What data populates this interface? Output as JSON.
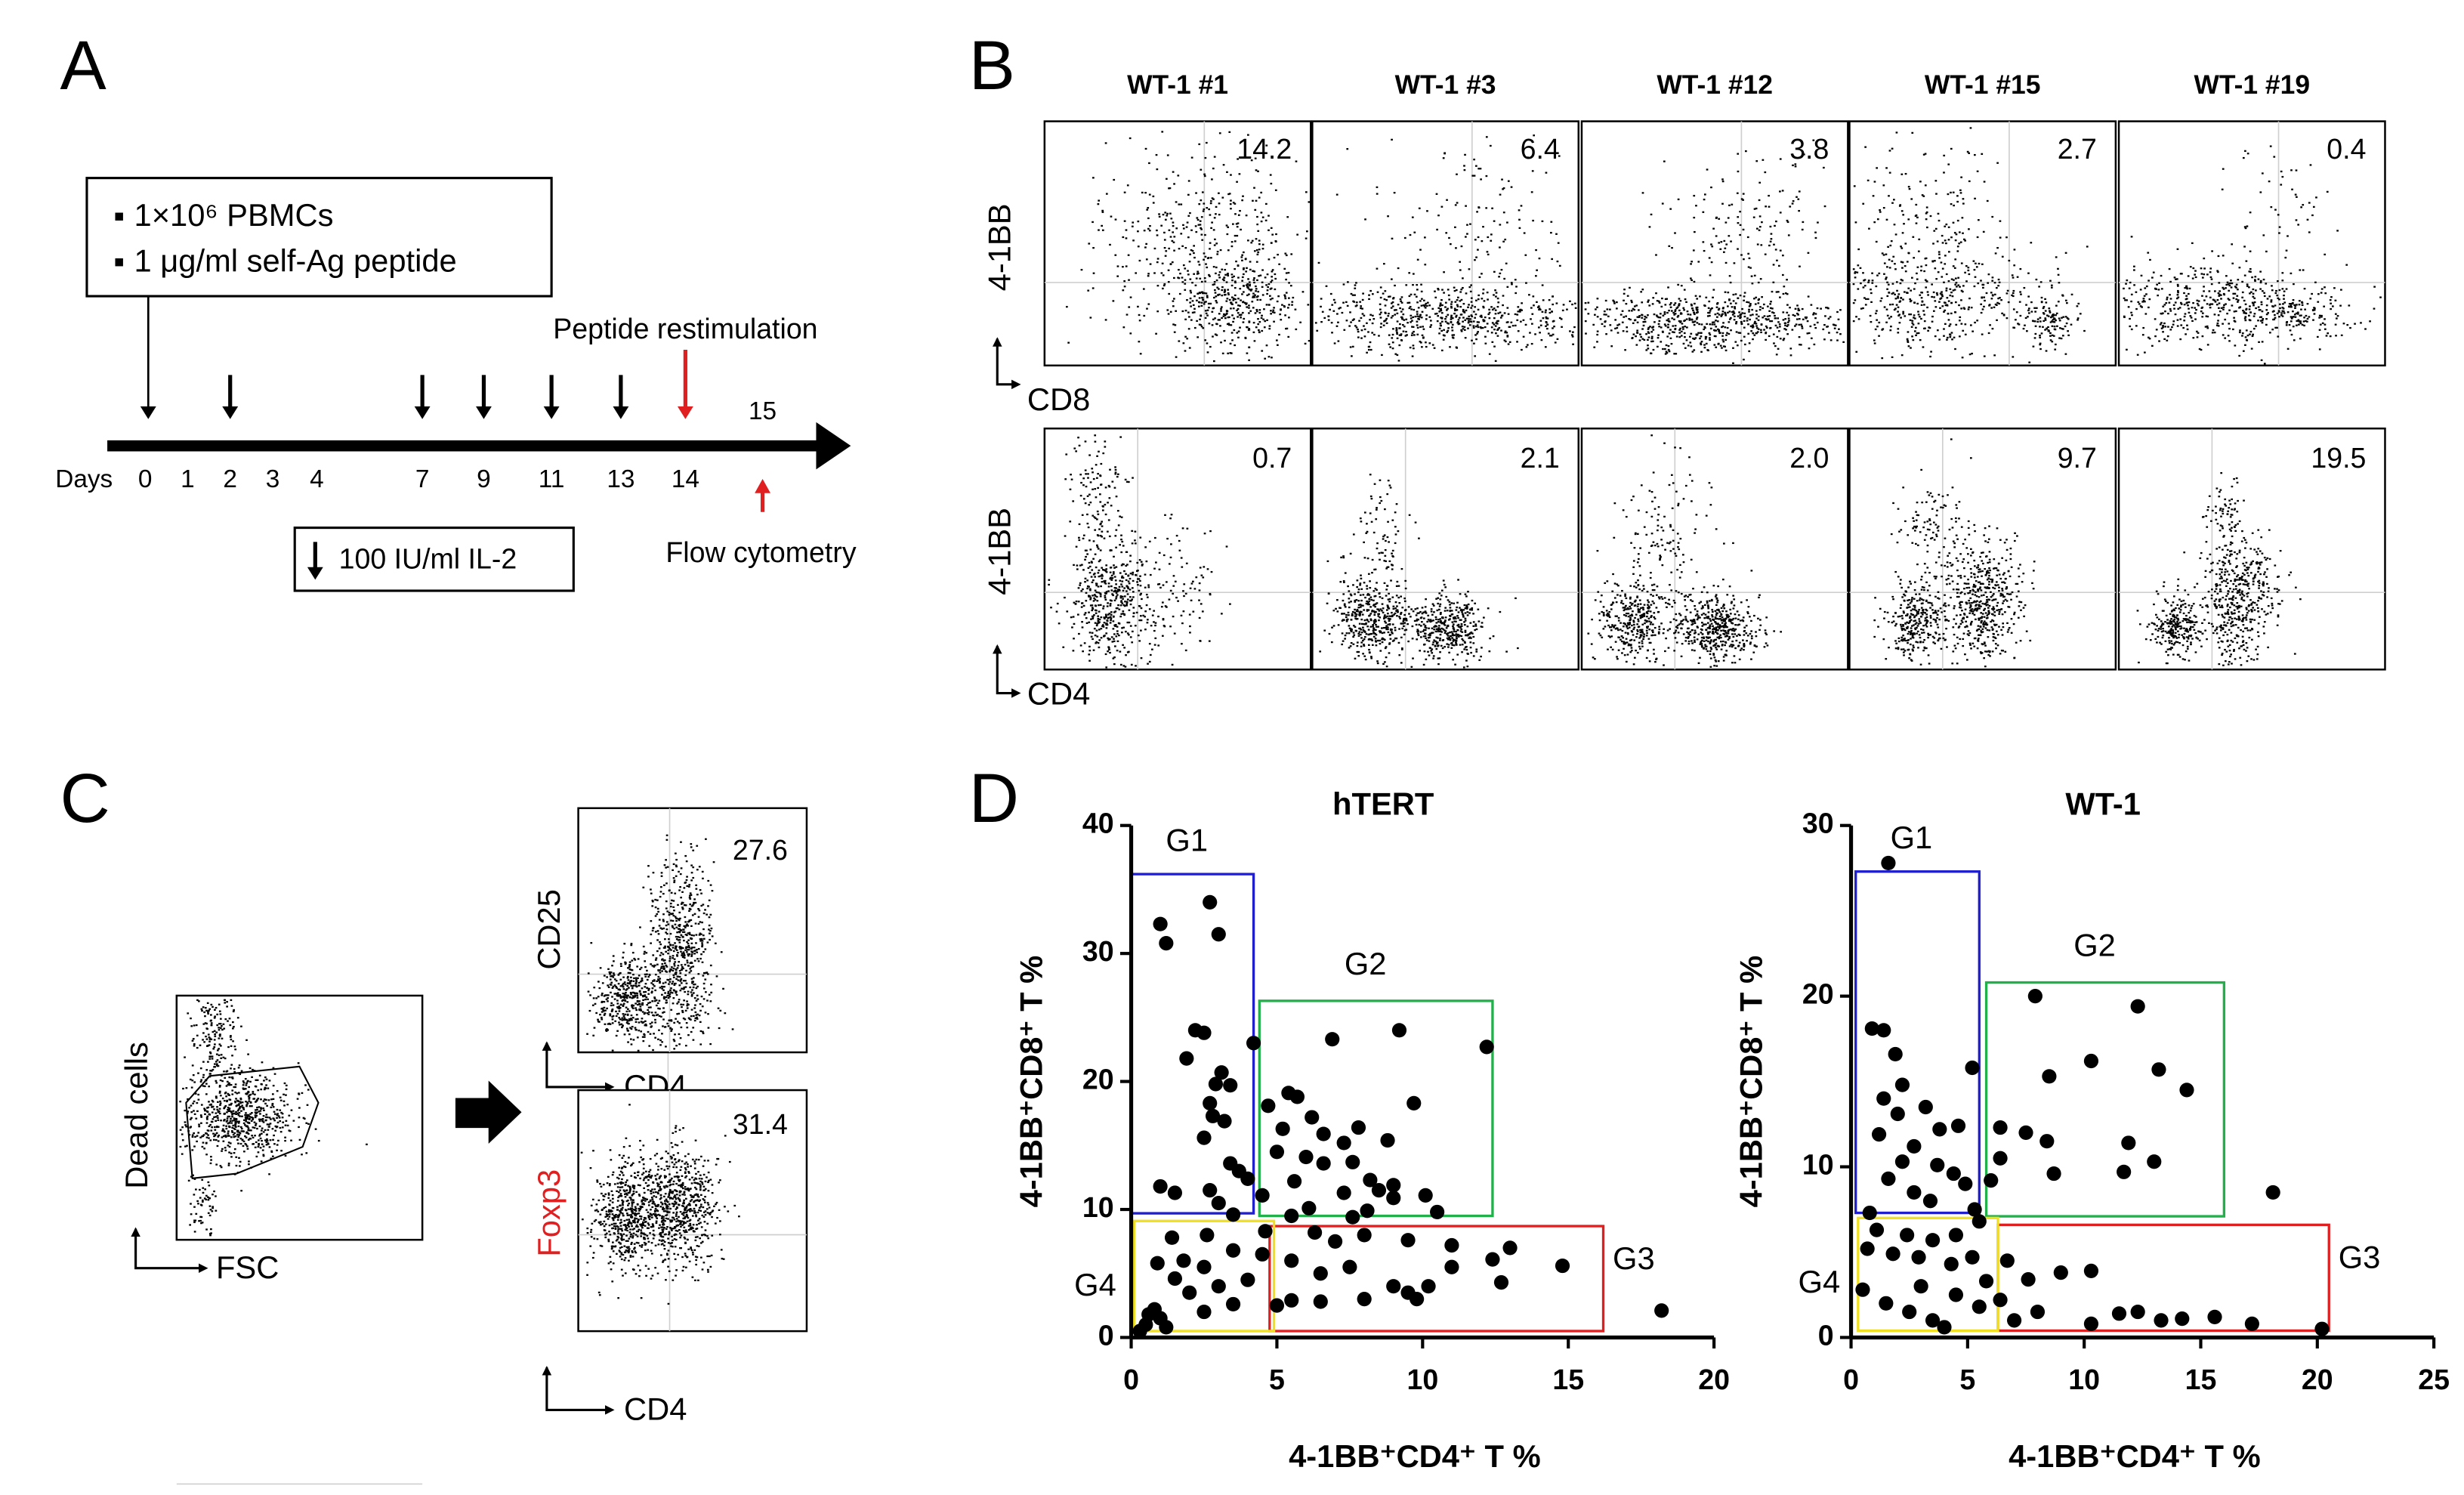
{
  "panel_labels": [
    "A",
    "B",
    "C",
    "D"
  ],
  "panel_a": {
    "protocol": [
      "1×10⁶ PBMCs",
      "1 μg/ml self-Ag peptide"
    ],
    "days_label": "Days",
    "days": [
      "0",
      "1",
      "2",
      "3",
      "4",
      "7",
      "9",
      "11",
      "13",
      "14",
      "15"
    ],
    "restimulation": "Peptide restimulation",
    "flow": "Flow cytometry",
    "il2": "100 IU/ml IL-2"
  },
  "panel_b": {
    "columns": [
      "WT-1 #1",
      "WT-1 #3",
      "WT-1 #12",
      "WT-1 #15",
      "WT-1 #19"
    ],
    "cd8_values": [
      "14.2",
      "6.4",
      "3.8",
      "2.7",
      "0.4"
    ],
    "cd4_values": [
      "0.7",
      "2.1",
      "2.0",
      "9.7",
      "19.5"
    ],
    "y_label": "4-1BB",
    "top_x_label": "CD8",
    "bottom_x_label": "CD4"
  },
  "panel_c": {
    "gate_y_label": "Dead cells",
    "gate_x_label": "FSC",
    "cd25_value": "27.6",
    "cd25_label": "CD25",
    "foxp3_value": "31.4",
    "foxp3_label": "Foxp3",
    "x_label": "CD4"
  },
  "chart_data": [
    {
      "type": "scatter",
      "title": "hTERT",
      "xlabel": "4-1BB⁺CD4⁺ T %",
      "ylabel": "4-1BB⁺CD8⁺ T %",
      "color": "#000000",
      "xlim": [
        0,
        20
      ],
      "xticks": [
        0,
        5,
        10,
        15,
        20
      ],
      "ylim": [
        0,
        40
      ],
      "yticks": [
        0,
        10,
        20,
        30,
        40
      ],
      "x": [
        1,
        1.2,
        2.7,
        3,
        2.2,
        2.5,
        4.2,
        9.2,
        12.2,
        6.9,
        1.9,
        3.1,
        2.9,
        3.4,
        2.7,
        2.8,
        3.2,
        2.5,
        5.4,
        5.7,
        4.7,
        9.7,
        6.2,
        7.8,
        5.2,
        6.6,
        7.3,
        8.8,
        5,
        6,
        6.6,
        7.6,
        3.4,
        3.7,
        4,
        5.6,
        8.2,
        9,
        8.5,
        4.5,
        7.3,
        9,
        10.1,
        1,
        1.5,
        2.7,
        3,
        6.1,
        8.1,
        5.5,
        7.6,
        10.5,
        3.5,
        2.6,
        1.4,
        4.6,
        6.3,
        7,
        8,
        9.5,
        11,
        13,
        12.4,
        11,
        14.8,
        12.7,
        10.2,
        9.5,
        8,
        6.5,
        5.5,
        5,
        4,
        3,
        2,
        1.5,
        3.5,
        2.5,
        1,
        0.5,
        0.8,
        1.2,
        0.3,
        18.2,
        9.8,
        9,
        7.5,
        6.5,
        5.5,
        4.5,
        3.5,
        2.5,
        1.8,
        0.9,
        0.6
      ],
      "values": [
        32.3,
        30.8,
        34,
        31.5,
        24,
        23.8,
        23,
        24,
        22.7,
        23.3,
        21.8,
        20.7,
        19.8,
        19.7,
        18.3,
        17.3,
        16.9,
        15.6,
        19.1,
        18.8,
        18.1,
        18.3,
        17.2,
        16.4,
        16.3,
        15.9,
        15.2,
        15.4,
        14.5,
        14.1,
        13.6,
        13.7,
        13.6,
        13,
        12.4,
        12.2,
        12.3,
        11.9,
        11.5,
        11.1,
        11.3,
        10.9,
        11.1,
        11.8,
        11.3,
        11.5,
        10.5,
        10.1,
        9.9,
        9.5,
        9.4,
        9.8,
        9.6,
        8,
        7.8,
        8.3,
        8.2,
        7.5,
        8,
        7.6,
        7.2,
        7,
        6.1,
        5.5,
        5.6,
        4.3,
        4,
        3.5,
        3,
        2.8,
        2.9,
        2.5,
        4.5,
        4,
        3.5,
        4.6,
        2.6,
        2,
        1.5,
        1,
        2.2,
        0.8,
        0.5,
        2.1,
        3,
        4,
        5.5,
        5,
        6,
        6.5,
        6.8,
        5.5,
        6,
        5.8,
        1.8
      ],
      "gates": [
        {
          "label": "G1",
          "color": "#1f1fd0",
          "x": [
            0,
            4.2
          ],
          "y": [
            9.7,
            36.2
          ]
        },
        {
          "label": "G2",
          "color": "#22b04a",
          "x": [
            4.4,
            12.4
          ],
          "y": [
            9.5,
            26.3
          ]
        },
        {
          "label": "G3",
          "color": "#e02020",
          "x": [
            4.75,
            16.2
          ],
          "y": [
            0.5,
            8.7
          ]
        },
        {
          "label": "G4",
          "color": "#f0e020",
          "x": [
            0.1,
            4.9
          ],
          "y": [
            0.5,
            9.1
          ]
        }
      ]
    },
    {
      "type": "scatter",
      "title": "WT-1",
      "xlabel": "4-1BB⁺CD4⁺ T %",
      "ylabel": "4-1BB⁺CD8⁺ T %",
      "color": "#000000",
      "xlim": [
        0,
        25
      ],
      "xticks": [
        0,
        5,
        10,
        15,
        20,
        25
      ],
      "ylim": [
        0,
        30
      ],
      "yticks": [
        0,
        10,
        20,
        30
      ],
      "x": [
        1.6,
        5.2,
        7.9,
        12.3,
        13.2,
        14.4,
        10.3,
        8.5,
        11.9,
        13,
        11.7,
        6.4,
        7.5,
        8.4,
        6.4,
        8.7,
        6,
        18.1,
        0.9,
        1.4,
        1.9,
        2.2,
        1.4,
        3.2,
        2,
        3.8,
        4.6,
        1.2,
        2.7,
        2.2,
        3.7,
        4.4,
        1.6,
        4.9,
        2.7,
        3.4,
        0.8,
        5.3,
        5.5,
        1.1,
        2.4,
        3.5,
        4.5,
        0.7,
        1.8,
        2.9,
        4.3,
        5.2,
        6.7,
        7.6,
        9,
        10.3,
        6.4,
        8,
        7,
        10.3,
        11.5,
        12.3,
        13.3,
        14.2,
        15.6,
        17.2,
        20.2,
        0.5,
        1.5,
        2.5,
        3.5,
        4.5,
        5.5,
        3,
        4,
        5.8
      ],
      "values": [
        27.8,
        15.8,
        20,
        19.4,
        15.7,
        14.5,
        16.2,
        15.3,
        11.4,
        10.3,
        9.7,
        12.3,
        12,
        11.5,
        10.5,
        9.6,
        9.2,
        8.5,
        18.1,
        18,
        16.6,
        14.8,
        14,
        13.5,
        13.1,
        12.2,
        12.4,
        11.9,
        11.2,
        10.3,
        10.1,
        9.6,
        9.3,
        9,
        8.5,
        8,
        7.3,
        7.5,
        6.8,
        6.3,
        6,
        5.7,
        6,
        5.2,
        4.9,
        4.7,
        4.3,
        4.7,
        4.5,
        3.4,
        3.8,
        3.9,
        2.2,
        1.5,
        1,
        0.8,
        1.4,
        1.5,
        1,
        1.1,
        1.2,
        0.8,
        0.5,
        2.8,
        2,
        1.5,
        1,
        2.5,
        1.8,
        3,
        0.6,
        3.3
      ],
      "gates": [
        {
          "label": "G1",
          "color": "#1f1fd0",
          "x": [
            0.2,
            5.5
          ],
          "y": [
            7.3,
            27.3
          ]
        },
        {
          "label": "G2",
          "color": "#22b04a",
          "x": [
            5.8,
            16
          ],
          "y": [
            7.1,
            20.8
          ]
        },
        {
          "label": "G3",
          "color": "#e02020",
          "x": [
            6.3,
            20.5
          ],
          "y": [
            0.4,
            6.6
          ]
        },
        {
          "label": "G4",
          "color": "#f0e020",
          "x": [
            0.3,
            6.3
          ],
          "y": [
            0.4,
            7
          ]
        }
      ]
    }
  ]
}
